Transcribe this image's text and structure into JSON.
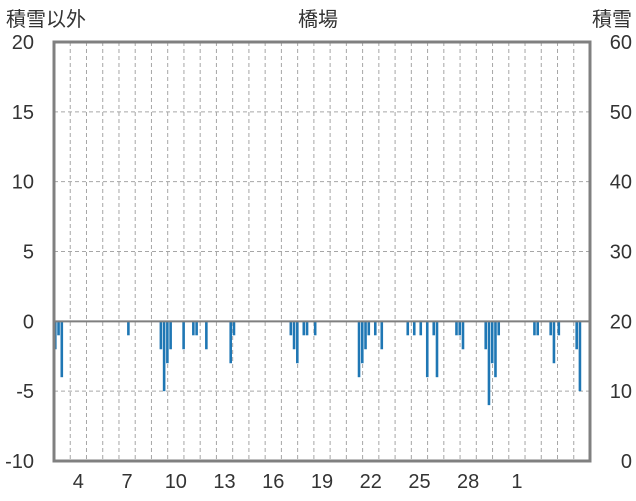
{
  "chart_data": {
    "type": "bar",
    "title": "橋場",
    "ylabel_left": "積雪以外",
    "ylabel_right": "積雪",
    "ylim_left": [
      -10,
      20
    ],
    "ylim_right": [
      0,
      60
    ],
    "yticks_left": [
      "20",
      "15",
      "10",
      "5",
      "0",
      "-5",
      "-10"
    ],
    "yticks_right": [
      "60",
      "50",
      "40",
      "30",
      "20",
      "10",
      "0"
    ],
    "xticks": [
      "4",
      "7",
      "10",
      "13",
      "16",
      "19",
      "22",
      "25",
      "28",
      "1"
    ],
    "grid": true,
    "bar_color": "#1f77b4",
    "series": [
      {
        "values": [
          [
            0.0,
            -2
          ],
          [
            0.2,
            -1
          ],
          [
            0.4,
            -4
          ],
          [
            4.5,
            -1
          ],
          [
            6.5,
            -2
          ],
          [
            6.7,
            -5
          ],
          [
            6.9,
            -3
          ],
          [
            7.1,
            -2
          ],
          [
            7.9,
            -2
          ],
          [
            8.5,
            -1
          ],
          [
            8.7,
            -1
          ],
          [
            9.3,
            -2
          ],
          [
            10.8,
            -3
          ],
          [
            11.0,
            -1
          ],
          [
            14.5,
            -1
          ],
          [
            14.7,
            -2
          ],
          [
            14.9,
            -3
          ],
          [
            15.3,
            -1
          ],
          [
            15.5,
            -1
          ],
          [
            16.0,
            -1
          ],
          [
            18.7,
            -4
          ],
          [
            18.9,
            -3
          ],
          [
            19.1,
            -2
          ],
          [
            19.3,
            -1
          ],
          [
            19.7,
            -1
          ],
          [
            20.1,
            -2
          ],
          [
            21.7,
            -1
          ],
          [
            22.1,
            -1
          ],
          [
            22.5,
            -1
          ],
          [
            22.9,
            -4
          ],
          [
            23.3,
            -1
          ],
          [
            23.5,
            -4
          ],
          [
            24.7,
            -1
          ],
          [
            24.9,
            -1
          ],
          [
            25.1,
            -2
          ],
          [
            26.5,
            -2
          ],
          [
            26.7,
            -6
          ],
          [
            26.9,
            -3
          ],
          [
            27.1,
            -4
          ],
          [
            27.3,
            -1
          ],
          [
            29.5,
            -1
          ],
          [
            29.7,
            -1
          ],
          [
            30.5,
            -1
          ],
          [
            30.7,
            -3
          ],
          [
            31.0,
            -1
          ],
          [
            32.1,
            -2
          ],
          [
            32.3,
            -5
          ]
        ]
      }
    ]
  }
}
